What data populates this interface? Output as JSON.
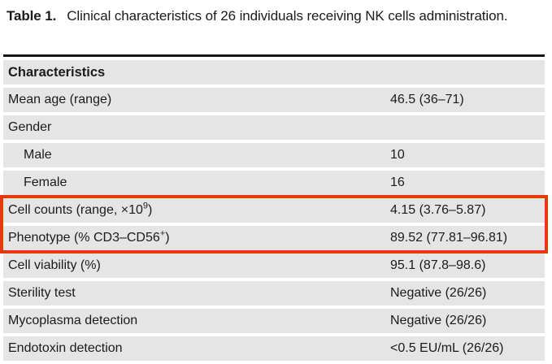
{
  "title": {
    "label": "Table 1.",
    "text": "Clinical characteristics of 26 individuals receiving NK cells administration."
  },
  "table": {
    "header": "Characteristics",
    "rows": [
      {
        "label": "Mean age (range)",
        "value": "46.5 (36–71)"
      },
      {
        "label": "Gender",
        "value": ""
      },
      {
        "label": "Male",
        "value": "10",
        "indent": true
      },
      {
        "label": "Female",
        "value": "16",
        "indent": true
      },
      {
        "label_pre": "Cell counts (range, ×10",
        "label_sup": "9",
        "label_post": ")",
        "value": "4.15 (3.76–5.87)",
        "highlighted": true
      },
      {
        "label_pre": "Phenotype (% CD3–CD56",
        "label_sup": "+",
        "label_post": ")",
        "value": "89.52 (77.81–96.81)",
        "highlighted": true
      },
      {
        "label": "Cell viability (%)",
        "value": "95.1 (87.8–98.6)"
      },
      {
        "label": "Sterility test",
        "value": "Negative (26/26)"
      },
      {
        "label": "Mycoplasma detection",
        "value": "Negative (26/26)"
      },
      {
        "label": "Endotoxin detection",
        "value": "<0.5 EU/mL (26/26)"
      }
    ]
  },
  "colors": {
    "highlight_border": "#e8380d",
    "row_bg": "#e5e5e5",
    "rule_color": "#161616",
    "text_color": "#1b1b1b"
  }
}
